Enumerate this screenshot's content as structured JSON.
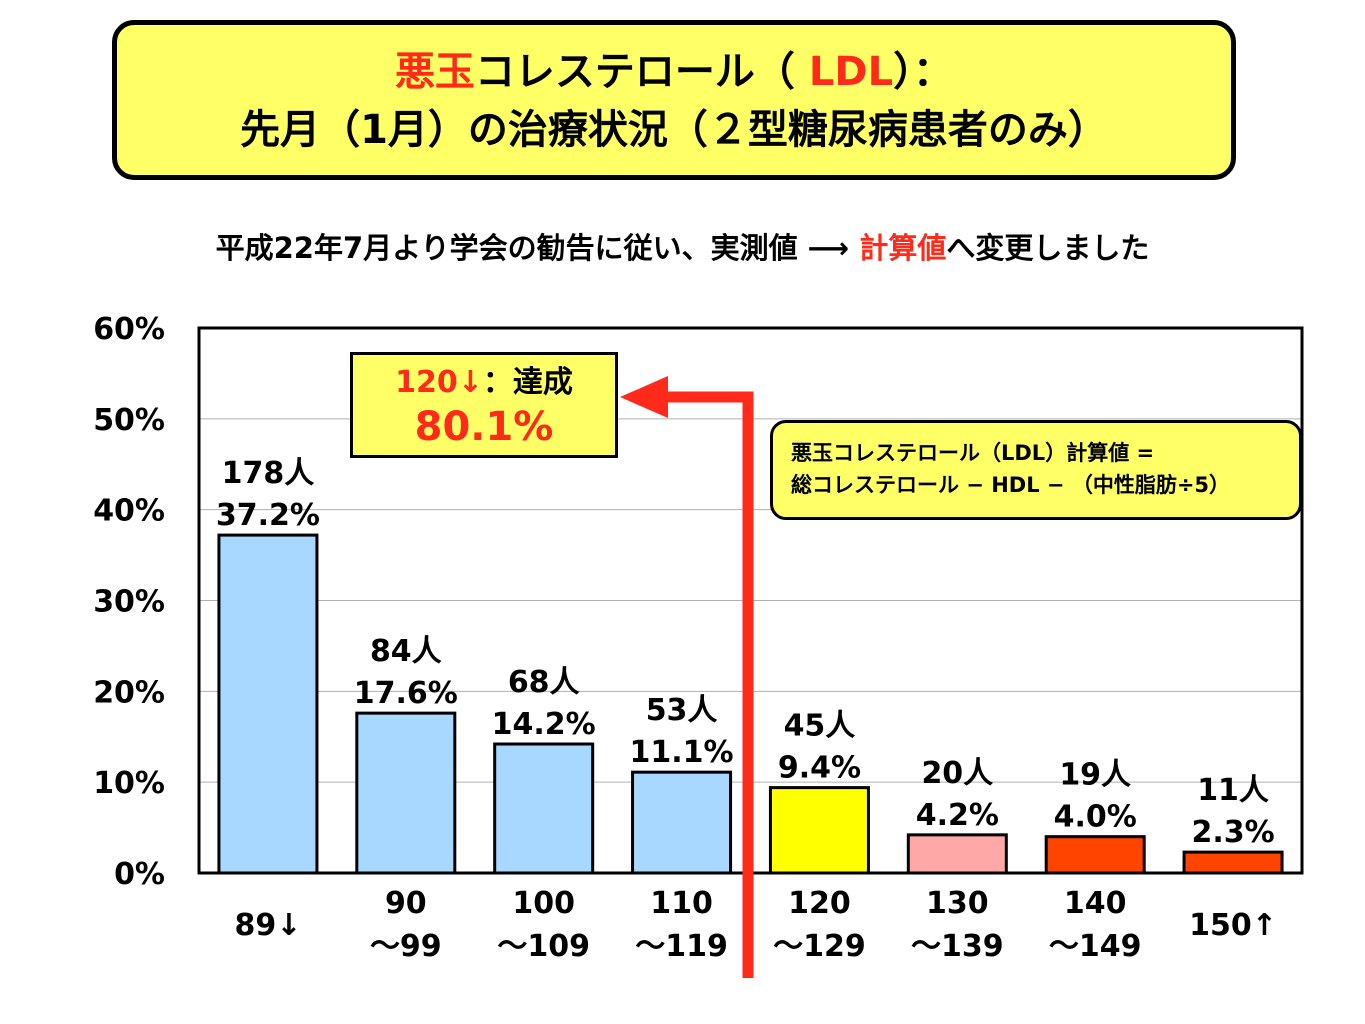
{
  "title": {
    "line1_red": "悪玉",
    "line1_mid": "コレステロール（ ",
    "line1_ldl": "LDL",
    "line1_end": "）：",
    "line2": "先月（1月）の治療状況（２型糖尿病患者のみ）"
  },
  "subtitle": {
    "prefix": "平成22年7月より学会の勧告に従い、実測値 ⟶ ",
    "highlight": "計算値",
    "suffix": "へ変更しました"
  },
  "annotation": {
    "label_red": "120↓",
    "label_rest": "：達成",
    "value": "80.1%"
  },
  "formula": {
    "line1": "悪玉コレステロール（LDL）計算値 =",
    "line2": "総コレステロール − HDL − （中性脂肪÷5）"
  },
  "colors": {
    "accent_red": "#ff2a1a",
    "box_yellow": "#ffff66"
  },
  "chart_data": {
    "type": "bar",
    "title": "",
    "xlabel": "",
    "ylabel": "",
    "ylim": [
      0,
      60
    ],
    "yticks": [
      "0%",
      "10%",
      "20%",
      "30%",
      "40%",
      "50%",
      "60%"
    ],
    "grid": true,
    "categories": [
      [
        "89↓"
      ],
      [
        "90",
        "～99"
      ],
      [
        "100",
        "～109"
      ],
      [
        "110",
        "～119"
      ],
      [
        "120",
        "～129"
      ],
      [
        "130",
        "～139"
      ],
      [
        "140",
        "～149"
      ],
      [
        "150↑"
      ]
    ],
    "values": [
      37.2,
      17.6,
      14.2,
      11.1,
      9.4,
      4.2,
      4.0,
      2.3
    ],
    "counts": [
      "178人",
      "84人",
      "68人",
      "53人",
      "45人",
      "20人",
      "19人",
      "11人"
    ],
    "percent_labels": [
      "37.2%",
      "17.6%",
      "14.2%",
      "11.1%",
      "9.4%",
      "4.2%",
      "4.0%",
      "2.3%"
    ],
    "bar_colors": [
      "#a8d8ff",
      "#a8d8ff",
      "#a8d8ff",
      "#a8d8ff",
      "#ffff00",
      "#ffa8a8",
      "#ff4400",
      "#ff4400"
    ]
  }
}
